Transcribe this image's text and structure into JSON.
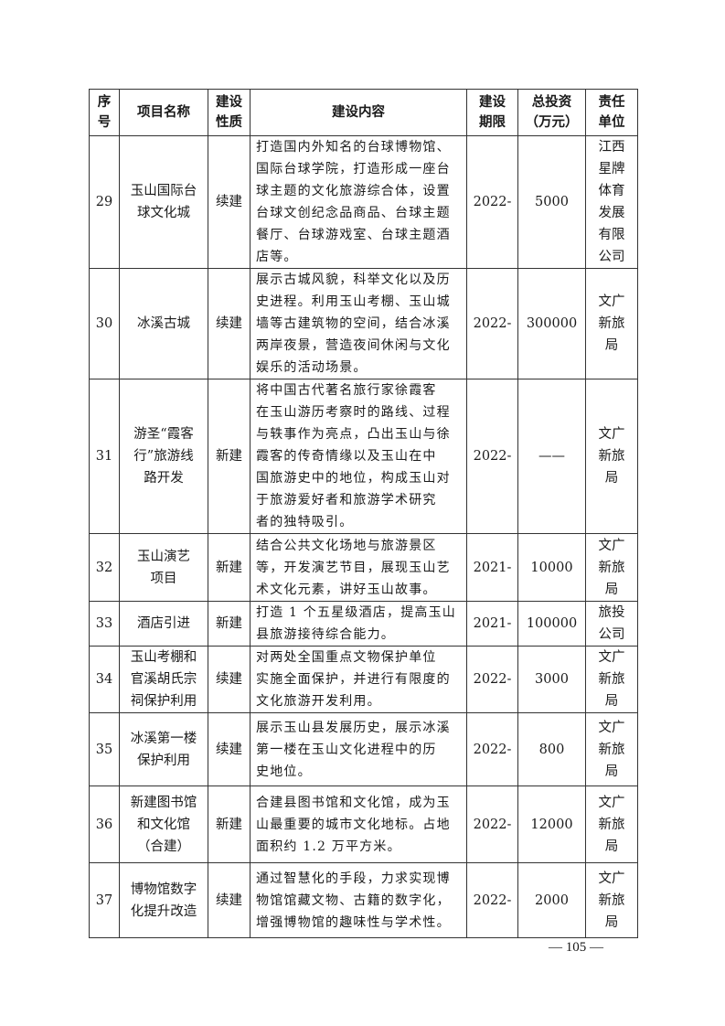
{
  "table": {
    "headers": [
      "序\n号",
      "项目名称",
      "建设\n性质",
      "建设内容",
      "建设\n期限",
      "总投资\n（万元）",
      "责任\n单位"
    ],
    "rows": [
      {
        "no": "29",
        "name": "玉山国际台\n球文化城",
        "type": "续建",
        "content": "打造国内外知名的台球博物馆、\n国际台球学院，打造形成一座台\n球主题的文化旅游综合体，设置\n台球文创纪念品商品、台球主题\n餐厅、台球游戏室、台球主题酒\n店等。",
        "period": "2022-",
        "invest": "5000",
        "unit": "江西\n星牌\n体育\n发展\n有限\n公司"
      },
      {
        "no": "30",
        "name": "冰溪古城",
        "type": "续建",
        "content": "展示古城风貌，科举文化以及历\n史进程。利用玉山考棚、玉山城\n墙等古建筑物的空间，结合冰溪\n两岸夜景，营造夜间休闲与文化\n娱乐的活动场景。",
        "period": "2022-",
        "invest": "300000",
        "unit": "文广\n新旅\n局"
      },
      {
        "no": "31",
        "name": "游圣“霞客\n行”旅游线\n路开发",
        "type": "新建",
        "content": "将中国古代著名旅行家徐霞客\n在玉山游历考察时的路线、过程\n与轶事作为亮点，凸出玉山与徐\n霞客的传奇情缘以及玉山在中\n国旅游史中的地位，构成玉山对\n于旅游爱好者和旅游学术研究\n者的独特吸引。",
        "period": "2022-",
        "invest": "——",
        "unit": "文广\n新旅\n局"
      },
      {
        "no": "32",
        "name": "玉山演艺\n项目",
        "type": "新建",
        "content": "结合公共文化场地与旅游景区\n等，开发演艺节目，展现玉山艺\n术文化元素，讲好玉山故事。",
        "period": "2021-",
        "invest": "10000",
        "unit": "文广\n新旅\n局"
      },
      {
        "no": "33",
        "name": "酒店引进",
        "type": "新建",
        "content": "打造 1 个五星级酒店，提高玉山\n县旅游接待综合能力。",
        "period": "2021-",
        "invest": "100000",
        "unit": "旅投\n公司"
      },
      {
        "no": "34",
        "name": "玉山考棚和\n官溪胡氏宗\n祠保护利用",
        "type": "续建",
        "content": "对两处全国重点文物保护单位\n实施全面保护，并进行有限度的\n文化旅游开发利用。",
        "period": "2022-",
        "invest": "3000",
        "unit": "文广\n新旅\n局"
      },
      {
        "no": "35",
        "name": "冰溪第一楼\n保护利用",
        "type": "续建",
        "content": "展示玉山县发展历史，展示冰溪\n第一楼在玉山文化进程中的历\n史地位。",
        "period": "2022-",
        "invest": "800",
        "unit": "文广\n新旅\n局"
      },
      {
        "no": "36",
        "name": "新建图书馆\n和文化馆\n（合建）",
        "type": "新建",
        "content": "合建县图书馆和文化馆，成为玉\n山最重要的城市文化地标。占地\n面积约 1.2 万平方米。",
        "period": "2022-",
        "invest": "12000",
        "unit": "文广\n新旅\n局"
      },
      {
        "no": "37",
        "name": "博物馆数字\n化提升改造",
        "type": "续建",
        "content": "通过智慧化的手段，力求实现博\n物馆馆藏文物、古籍的数字化，\n增强博物馆的趣味性与学术性。",
        "period": "2022-",
        "invest": "2000",
        "unit": "文广\n新旅\n局"
      }
    ]
  },
  "footer": {
    "page_number": "— 105 —"
  }
}
